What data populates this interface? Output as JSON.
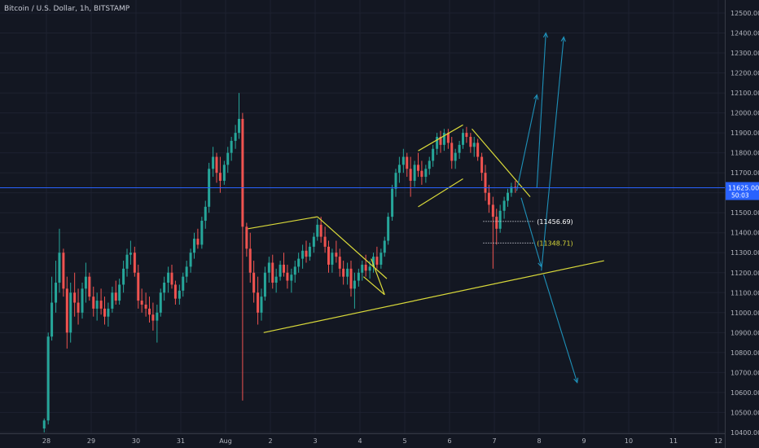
{
  "header": {
    "title": "Bitcoin / U.S. Dollar, 1h, BITSTAMP"
  },
  "colors": {
    "background": "#131722",
    "grid": "#1e2230",
    "candle_up": "#26a69a",
    "candle_down": "#ef5350",
    "price_line": "#2962ff",
    "trendline": "#d9d93a",
    "projection": "#1e90b8"
  },
  "chart_data": {
    "type": "candlestick",
    "title": "Bitcoin / U.S. Dollar, 1h, BITSTAMP",
    "xlabel": "",
    "ylabel": "",
    "x_ticks": [
      "28",
      "29",
      "30",
      "31",
      "Aug",
      "2",
      "3",
      "4",
      "5",
      "6",
      "7",
      "8",
      "9",
      "10",
      "11",
      "12"
    ],
    "y_ticks": [
      "12500.00",
      "12400.00",
      "12300.00",
      "12200.00",
      "12100.00",
      "12000.00",
      "11900.00",
      "11800.00",
      "11700.00",
      "11600.00",
      "11500.00",
      "11400.00",
      "11300.00",
      "11200.00",
      "11100.00",
      "11000.00",
      "10900.00",
      "10800.00",
      "10700.00",
      "10600.00",
      "10500.00",
      "10400.00"
    ],
    "ylim": [
      10400,
      12540
    ],
    "grid": true,
    "current_price": {
      "label": "11625.00",
      "value": 11625,
      "countdown": "50:03"
    },
    "key_levels": [
      {
        "label": "(11456.69)",
        "value": 11456.69,
        "color": "#ffffff"
      },
      {
        "label": "(11348.71)",
        "value": 11348.71,
        "color": "#d9d93a"
      }
    ],
    "candles": [
      {
        "x": 27.95,
        "o": 10420,
        "h": 10470,
        "l": 10400,
        "c": 10460
      },
      {
        "x": 28.04,
        "o": 10460,
        "h": 10900,
        "l": 10440,
        "c": 10880
      },
      {
        "x": 28.12,
        "o": 10880,
        "h": 11180,
        "l": 10860,
        "c": 11050
      },
      {
        "x": 28.21,
        "o": 11050,
        "h": 11260,
        "l": 11000,
        "c": 11150
      },
      {
        "x": 28.29,
        "o": 11150,
        "h": 11420,
        "l": 11100,
        "c": 11300
      },
      {
        "x": 28.38,
        "o": 11300,
        "h": 11320,
        "l": 11080,
        "c": 11120
      },
      {
        "x": 28.46,
        "o": 11120,
        "h": 11180,
        "l": 10820,
        "c": 10900
      },
      {
        "x": 28.54,
        "o": 10900,
        "h": 11150,
        "l": 10850,
        "c": 11100
      },
      {
        "x": 28.63,
        "o": 11100,
        "h": 11200,
        "l": 10980,
        "c": 11050
      },
      {
        "x": 28.71,
        "o": 11050,
        "h": 11120,
        "l": 10940,
        "c": 11000
      },
      {
        "x": 28.8,
        "o": 11000,
        "h": 11150,
        "l": 10970,
        "c": 11120
      },
      {
        "x": 28.88,
        "o": 11120,
        "h": 11250,
        "l": 11050,
        "c": 11180
      },
      {
        "x": 28.96,
        "o": 11180,
        "h": 11200,
        "l": 11060,
        "c": 11080
      },
      {
        "x": 29.05,
        "o": 11080,
        "h": 11130,
        "l": 10980,
        "c": 11020
      },
      {
        "x": 29.13,
        "o": 11020,
        "h": 11100,
        "l": 10960,
        "c": 11060
      },
      {
        "x": 29.22,
        "o": 11060,
        "h": 11120,
        "l": 10990,
        "c": 11020
      },
      {
        "x": 29.3,
        "o": 11020,
        "h": 11080,
        "l": 10940,
        "c": 10980
      },
      {
        "x": 29.38,
        "o": 10980,
        "h": 11050,
        "l": 10930,
        "c": 11020
      },
      {
        "x": 29.47,
        "o": 11020,
        "h": 11130,
        "l": 11000,
        "c": 11100
      },
      {
        "x": 29.55,
        "o": 11100,
        "h": 11160,
        "l": 11040,
        "c": 11060
      },
      {
        "x": 29.63,
        "o": 11060,
        "h": 11170,
        "l": 11040,
        "c": 11140
      },
      {
        "x": 29.72,
        "o": 11140,
        "h": 11260,
        "l": 11100,
        "c": 11220
      },
      {
        "x": 29.8,
        "o": 11220,
        "h": 11320,
        "l": 11180,
        "c": 11290
      },
      {
        "x": 29.88,
        "o": 11290,
        "h": 11360,
        "l": 11240,
        "c": 11300
      },
      {
        "x": 29.97,
        "o": 11300,
        "h": 11330,
        "l": 11180,
        "c": 11200
      },
      {
        "x": 30.05,
        "o": 11200,
        "h": 11240,
        "l": 11020,
        "c": 11060
      },
      {
        "x": 30.13,
        "o": 11060,
        "h": 11120,
        "l": 11000,
        "c": 11040
      },
      {
        "x": 30.22,
        "o": 11040,
        "h": 11100,
        "l": 10980,
        "c": 11020
      },
      {
        "x": 30.3,
        "o": 11020,
        "h": 11080,
        "l": 10950,
        "c": 10990
      },
      {
        "x": 30.38,
        "o": 10990,
        "h": 11050,
        "l": 10910,
        "c": 10960
      },
      {
        "x": 30.47,
        "o": 10960,
        "h": 11040,
        "l": 10850,
        "c": 11000
      },
      {
        "x": 30.55,
        "o": 11000,
        "h": 11120,
        "l": 10980,
        "c": 11100
      },
      {
        "x": 30.63,
        "o": 11100,
        "h": 11180,
        "l": 11060,
        "c": 11150
      },
      {
        "x": 30.72,
        "o": 11150,
        "h": 11230,
        "l": 11100,
        "c": 11200
      },
      {
        "x": 30.8,
        "o": 11200,
        "h": 11240,
        "l": 11120,
        "c": 11140
      },
      {
        "x": 30.88,
        "o": 11140,
        "h": 11160,
        "l": 11040,
        "c": 11070
      },
      {
        "x": 30.97,
        "o": 11070,
        "h": 11140,
        "l": 11040,
        "c": 11110
      },
      {
        "x": 31.05,
        "o": 11110,
        "h": 11200,
        "l": 11080,
        "c": 11180
      },
      {
        "x": 31.13,
        "o": 11180,
        "h": 11260,
        "l": 11150,
        "c": 11230
      },
      {
        "x": 31.22,
        "o": 11230,
        "h": 11320,
        "l": 11200,
        "c": 11300
      },
      {
        "x": 31.3,
        "o": 11300,
        "h": 11400,
        "l": 11270,
        "c": 11370
      },
      {
        "x": 31.38,
        "o": 11370,
        "h": 11420,
        "l": 11320,
        "c": 11340
      },
      {
        "x": 31.47,
        "o": 11340,
        "h": 11480,
        "l": 11320,
        "c": 11460
      },
      {
        "x": 31.55,
        "o": 11460,
        "h": 11560,
        "l": 11420,
        "c": 11530
      },
      {
        "x": 31.63,
        "o": 11530,
        "h": 11750,
        "l": 11500,
        "c": 11720
      },
      {
        "x": 31.72,
        "o": 11720,
        "h": 11830,
        "l": 11680,
        "c": 11780
      },
      {
        "x": 31.8,
        "o": 11780,
        "h": 11800,
        "l": 11650,
        "c": 11700
      },
      {
        "x": 31.88,
        "o": 11700,
        "h": 11780,
        "l": 11600,
        "c": 11660
      },
      {
        "x": 31.97,
        "o": 11660,
        "h": 11760,
        "l": 11640,
        "c": 11740
      },
      {
        "x": 32.05,
        "o": 11740,
        "h": 11830,
        "l": 11700,
        "c": 11800
      },
      {
        "x": 32.13,
        "o": 11800,
        "h": 11880,
        "l": 11760,
        "c": 11860
      },
      {
        "x": 32.22,
        "o": 11860,
        "h": 11940,
        "l": 11820,
        "c": 11900
      },
      {
        "x": 32.3,
        "o": 11900,
        "h": 12100,
        "l": 11870,
        "c": 11970
      },
      {
        "x": 32.38,
        "o": 11970,
        "h": 12000,
        "l": 10560,
        "c": 11430
      },
      {
        "x": 32.47,
        "o": 11430,
        "h": 11450,
        "l": 11280,
        "c": 11320
      },
      {
        "x": 32.55,
        "o": 11320,
        "h": 11400,
        "l": 11150,
        "c": 11200
      },
      {
        "x": 32.63,
        "o": 11200,
        "h": 11260,
        "l": 11050,
        "c": 11100
      },
      {
        "x": 32.72,
        "o": 11100,
        "h": 11180,
        "l": 10940,
        "c": 11000
      },
      {
        "x": 32.8,
        "o": 11000,
        "h": 11120,
        "l": 10960,
        "c": 11080
      },
      {
        "x": 32.88,
        "o": 11080,
        "h": 11230,
        "l": 11060,
        "c": 11200
      },
      {
        "x": 32.97,
        "o": 11200,
        "h": 11280,
        "l": 11150,
        "c": 11250
      },
      {
        "x": 33.05,
        "o": 11250,
        "h": 11290,
        "l": 11120,
        "c": 11150
      },
      {
        "x": 33.13,
        "o": 11150,
        "h": 11220,
        "l": 11100,
        "c": 11180
      },
      {
        "x": 33.22,
        "o": 11180,
        "h": 11260,
        "l": 11160,
        "c": 11240
      },
      {
        "x": 33.3,
        "o": 11240,
        "h": 11300,
        "l": 11180,
        "c": 11200
      },
      {
        "x": 33.38,
        "o": 11200,
        "h": 11240,
        "l": 11120,
        "c": 11160
      },
      {
        "x": 33.47,
        "o": 11160,
        "h": 11220,
        "l": 11100,
        "c": 11190
      },
      {
        "x": 33.55,
        "o": 11190,
        "h": 11260,
        "l": 11150,
        "c": 11230
      },
      {
        "x": 33.63,
        "o": 11230,
        "h": 11300,
        "l": 11200,
        "c": 11270
      },
      {
        "x": 33.72,
        "o": 11270,
        "h": 11340,
        "l": 11220,
        "c": 11310
      },
      {
        "x": 33.8,
        "o": 11310,
        "h": 11360,
        "l": 11250,
        "c": 11280
      },
      {
        "x": 33.88,
        "o": 11280,
        "h": 11350,
        "l": 11260,
        "c": 11330
      },
      {
        "x": 33.97,
        "o": 11330,
        "h": 11400,
        "l": 11300,
        "c": 11380
      },
      {
        "x": 34.05,
        "o": 11380,
        "h": 11470,
        "l": 11360,
        "c": 11440
      },
      {
        "x": 34.13,
        "o": 11440,
        "h": 11480,
        "l": 11350,
        "c": 11380
      },
      {
        "x": 34.22,
        "o": 11380,
        "h": 11430,
        "l": 11300,
        "c": 11330
      },
      {
        "x": 34.3,
        "o": 11330,
        "h": 11360,
        "l": 11200,
        "c": 11240
      },
      {
        "x": 34.38,
        "o": 11240,
        "h": 11320,
        "l": 11200,
        "c": 11300
      },
      {
        "x": 34.47,
        "o": 11300,
        "h": 11360,
        "l": 11250,
        "c": 11280
      },
      {
        "x": 34.55,
        "o": 11280,
        "h": 11320,
        "l": 11180,
        "c": 11220
      },
      {
        "x": 34.63,
        "o": 11220,
        "h": 11260,
        "l": 11140,
        "c": 11180
      },
      {
        "x": 34.72,
        "o": 11180,
        "h": 11250,
        "l": 11140,
        "c": 11220
      },
      {
        "x": 34.8,
        "o": 11220,
        "h": 11260,
        "l": 11080,
        "c": 11120
      },
      {
        "x": 34.88,
        "o": 11120,
        "h": 11200,
        "l": 11020,
        "c": 11160
      },
      {
        "x": 34.97,
        "o": 11160,
        "h": 11220,
        "l": 11130,
        "c": 11200
      },
      {
        "x": 35.05,
        "o": 11200,
        "h": 11260,
        "l": 11160,
        "c": 11240
      },
      {
        "x": 35.13,
        "o": 11240,
        "h": 11290,
        "l": 11180,
        "c": 11210
      },
      {
        "x": 35.22,
        "o": 11210,
        "h": 11260,
        "l": 11170,
        "c": 11230
      },
      {
        "x": 35.3,
        "o": 11230,
        "h": 11300,
        "l": 11200,
        "c": 11280
      },
      {
        "x": 35.38,
        "o": 11280,
        "h": 11330,
        "l": 11220,
        "c": 11240
      },
      {
        "x": 35.47,
        "o": 11240,
        "h": 11320,
        "l": 11220,
        "c": 11300
      },
      {
        "x": 35.55,
        "o": 11300,
        "h": 11380,
        "l": 11280,
        "c": 11360
      },
      {
        "x": 35.63,
        "o": 11360,
        "h": 11500,
        "l": 11340,
        "c": 11480
      },
      {
        "x": 35.72,
        "o": 11480,
        "h": 11640,
        "l": 11460,
        "c": 11620
      },
      {
        "x": 35.8,
        "o": 11620,
        "h": 11720,
        "l": 11580,
        "c": 11700
      },
      {
        "x": 35.88,
        "o": 11700,
        "h": 11780,
        "l": 11650,
        "c": 11740
      },
      {
        "x": 35.97,
        "o": 11740,
        "h": 11820,
        "l": 11700,
        "c": 11780
      },
      {
        "x": 36.05,
        "o": 11780,
        "h": 11800,
        "l": 11680,
        "c": 11720
      },
      {
        "x": 36.13,
        "o": 11720,
        "h": 11780,
        "l": 11580,
        "c": 11660
      },
      {
        "x": 36.22,
        "o": 11660,
        "h": 11760,
        "l": 11630,
        "c": 11740
      },
      {
        "x": 36.3,
        "o": 11740,
        "h": 11800,
        "l": 11680,
        "c": 11710
      },
      {
        "x": 36.38,
        "o": 11710,
        "h": 11760,
        "l": 11640,
        "c": 11680
      },
      {
        "x": 36.47,
        "o": 11680,
        "h": 11740,
        "l": 11650,
        "c": 11720
      },
      {
        "x": 36.55,
        "o": 11720,
        "h": 11780,
        "l": 11690,
        "c": 11760
      },
      {
        "x": 36.63,
        "o": 11760,
        "h": 11840,
        "l": 11730,
        "c": 11820
      },
      {
        "x": 36.72,
        "o": 11820,
        "h": 11900,
        "l": 11790,
        "c": 11880
      },
      {
        "x": 36.8,
        "o": 11880,
        "h": 11910,
        "l": 11800,
        "c": 11840
      },
      {
        "x": 36.88,
        "o": 11840,
        "h": 11920,
        "l": 11810,
        "c": 11900
      },
      {
        "x": 36.97,
        "o": 11900,
        "h": 11920,
        "l": 11820,
        "c": 11850
      },
      {
        "x": 37.05,
        "o": 11850,
        "h": 11880,
        "l": 11720,
        "c": 11760
      },
      {
        "x": 37.13,
        "o": 11760,
        "h": 11820,
        "l": 11720,
        "c": 11800
      },
      {
        "x": 37.22,
        "o": 11800,
        "h": 11860,
        "l": 11770,
        "c": 11840
      },
      {
        "x": 37.3,
        "o": 11840,
        "h": 11920,
        "l": 11820,
        "c": 11900
      },
      {
        "x": 37.38,
        "o": 11900,
        "h": 11930,
        "l": 11850,
        "c": 11880
      },
      {
        "x": 37.47,
        "o": 11880,
        "h": 11900,
        "l": 11800,
        "c": 11830
      },
      {
        "x": 37.55,
        "o": 11830,
        "h": 11880,
        "l": 11780,
        "c": 11850
      },
      {
        "x": 37.63,
        "o": 11850,
        "h": 11870,
        "l": 11760,
        "c": 11780
      },
      {
        "x": 37.72,
        "o": 11780,
        "h": 11800,
        "l": 11660,
        "c": 11700
      },
      {
        "x": 37.8,
        "o": 11700,
        "h": 11740,
        "l": 11560,
        "c": 11600
      },
      {
        "x": 37.88,
        "o": 11600,
        "h": 11640,
        "l": 11500,
        "c": 11540
      },
      {
        "x": 37.97,
        "o": 11540,
        "h": 11580,
        "l": 11220,
        "c": 11480
      },
      {
        "x": 38.05,
        "o": 11480,
        "h": 11520,
        "l": 11340,
        "c": 11420
      },
      {
        "x": 38.13,
        "o": 11420,
        "h": 11540,
        "l": 11400,
        "c": 11510
      },
      {
        "x": 38.22,
        "o": 11510,
        "h": 11580,
        "l": 11470,
        "c": 11560
      },
      {
        "x": 38.3,
        "o": 11560,
        "h": 11620,
        "l": 11530,
        "c": 11600
      },
      {
        "x": 38.38,
        "o": 11600,
        "h": 11650,
        "l": 11580,
        "c": 11630
      },
      {
        "x": 38.47,
        "o": 11630,
        "h": 11660,
        "l": 11600,
        "c": 11625
      }
    ],
    "trendlines": [
      {
        "x1": 32.85,
        "y1": 10900,
        "x2": 40.45,
        "y2": 11260
      },
      {
        "x1": 32.5,
        "y1": 11420,
        "x2": 34.05,
        "y2": 11480
      },
      {
        "x1": 34.05,
        "y1": 11480,
        "x2": 35.6,
        "y2": 11170
      },
      {
        "x1": 35.08,
        "y1": 11180,
        "x2": 35.55,
        "y2": 11090
      },
      {
        "x1": 35.25,
        "y1": 11270,
        "x2": 35.55,
        "y2": 11090
      },
      {
        "x1": 36.3,
        "y1": 11810,
        "x2": 37.3,
        "y2": 11940
      },
      {
        "x1": 36.3,
        "y1": 11530,
        "x2": 37.3,
        "y2": 11670
      },
      {
        "x1": 37.5,
        "y1": 11920,
        "x2": 38.8,
        "y2": 11580
      }
    ],
    "projections": [
      [
        {
          "x": 38.5,
          "y": 11610
        },
        {
          "x": 38.95,
          "y": 12090
        }
      ],
      [
        {
          "x": 38.95,
          "y": 11625
        },
        {
          "x": 39.15,
          "y": 12400
        }
      ],
      [
        {
          "x": 38.6,
          "y": 11575
        },
        {
          "x": 39.05,
          "y": 11230
        }
      ],
      [
        {
          "x": 39.05,
          "y": 11210
        },
        {
          "x": 39.55,
          "y": 12380
        }
      ],
      [
        {
          "x": 39.1,
          "y": 11190
        },
        {
          "x": 39.85,
          "y": 10650
        }
      ]
    ]
  }
}
